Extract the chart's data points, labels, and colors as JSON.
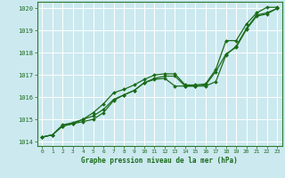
{
  "bg_color": "#cce9f0",
  "grid_color": "#ffffff",
  "line_color": "#1a6b1a",
  "marker_color": "#1a6b1a",
  "title": "Graphe pression niveau de la mer (hPa)",
  "xlim": [
    -0.5,
    23.5
  ],
  "ylim": [
    1013.8,
    1020.3
  ],
  "yticks": [
    1014,
    1015,
    1016,
    1017,
    1018,
    1019,
    1020
  ],
  "xticks": [
    0,
    1,
    2,
    3,
    4,
    5,
    6,
    7,
    8,
    9,
    10,
    11,
    12,
    13,
    14,
    15,
    16,
    17,
    18,
    19,
    20,
    21,
    22,
    23
  ],
  "series": [
    [
      1014.2,
      1014.3,
      1014.7,
      1014.8,
      1014.9,
      1015.0,
      1015.3,
      1015.85,
      1016.1,
      1016.3,
      1016.65,
      1016.8,
      1016.85,
      1016.5,
      1016.5,
      1016.5,
      1016.5,
      1016.7,
      1017.9,
      1018.3,
      1019.1,
      1019.7,
      1019.8,
      1020.0
    ],
    [
      1014.2,
      1014.3,
      1014.75,
      1014.85,
      1015.0,
      1015.15,
      1015.45,
      1015.9,
      1016.1,
      1016.3,
      1016.65,
      1016.85,
      1016.95,
      1016.95,
      1016.5,
      1016.5,
      1016.55,
      1017.15,
      1017.95,
      1018.25,
      1019.05,
      1019.65,
      1019.75,
      1020.0
    ],
    [
      1014.2,
      1014.3,
      1014.7,
      1014.8,
      1015.0,
      1015.3,
      1015.7,
      1016.2,
      1016.35,
      1016.55,
      1016.8,
      1017.0,
      1017.05,
      1017.05,
      1016.55,
      1016.55,
      1016.6,
      1017.25,
      1018.55,
      1018.55,
      1019.3,
      1019.8,
      1020.05,
      1020.05
    ]
  ],
  "series_markers": [
    true,
    true,
    true
  ],
  "marker_size": 2.0,
  "line_width": 0.9
}
